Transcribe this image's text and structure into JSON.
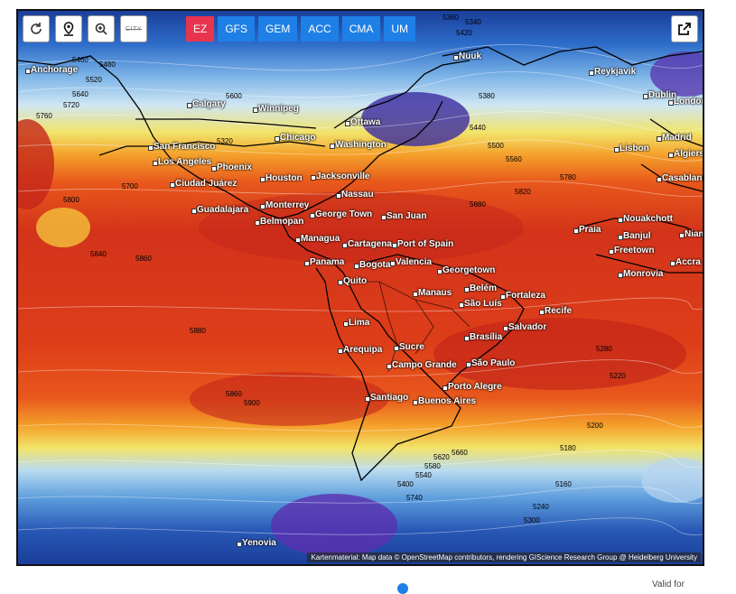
{
  "toolbar": {
    "reload_icon": "reload-icon",
    "location_icon": "location-pin-icon",
    "zoom_icon": "zoom-icon",
    "city_label": "CITY"
  },
  "models": [
    {
      "label": "EZ",
      "active": true
    },
    {
      "label": "GFS",
      "active": false
    },
    {
      "label": "GEM",
      "active": false
    },
    {
      "label": "ACC",
      "active": false
    },
    {
      "label": "CMA",
      "active": false
    },
    {
      "label": "UM",
      "active": false
    }
  ],
  "cities": [
    "Anchorage",
    "Calgary",
    "Winnipeg",
    "Reykjavik",
    "Dublin",
    "London",
    "Ottawa",
    "Chicago",
    "Washington",
    "San Francisco",
    "Los Angeles",
    "Phoenix",
    "Houston",
    "Jacksonville",
    "Nassau",
    "Monterrey",
    "Ciudad Juárez",
    "Madrid",
    "Lisbon",
    "Algiers",
    "Casablanca",
    "Guadalajara",
    "Belmopan",
    "George Town",
    "San Juan",
    "Managua",
    "Cartagena",
    "Port of Spain",
    "Nouakchott",
    "Praia",
    "Banjul",
    "Niamey",
    "Freetown",
    "Accra",
    "Monrovia",
    "Panama",
    "Bogota",
    "Valencia",
    "Georgetown",
    "Quito",
    "Manaus",
    "Belém",
    "Fortaleza",
    "São Luís",
    "Recife",
    "Salvador",
    "Lima",
    "Brasília",
    "Arequipa",
    "Sucre",
    "Campo Grande",
    "São Paulo",
    "Porto Alegre",
    "Santiago",
    "Buenos Aires",
    "Yenovia",
    "Nuuk"
  ],
  "isolines": [
    "5360",
    "5340",
    "5420",
    "5460",
    "5480",
    "5520",
    "5640",
    "5720",
    "5760",
    "5700",
    "5800",
    "5840",
    "5860",
    "5880",
    "5780",
    "5820",
    "5680",
    "5600",
    "5560",
    "5500",
    "5440",
    "5380",
    "5320",
    "5280",
    "5220",
    "5200",
    "5180",
    "5160",
    "5240",
    "5300",
    "5660",
    "5620",
    "5580",
    "5540",
    "5400",
    "5740",
    "5860",
    "5900"
  ],
  "attribution": "Kartenmaterial: Map data © OpenStreetMap contributors, rendering GIScience Research Group @ Heidelberg University",
  "footer": {
    "valid_label": "Valid for"
  }
}
